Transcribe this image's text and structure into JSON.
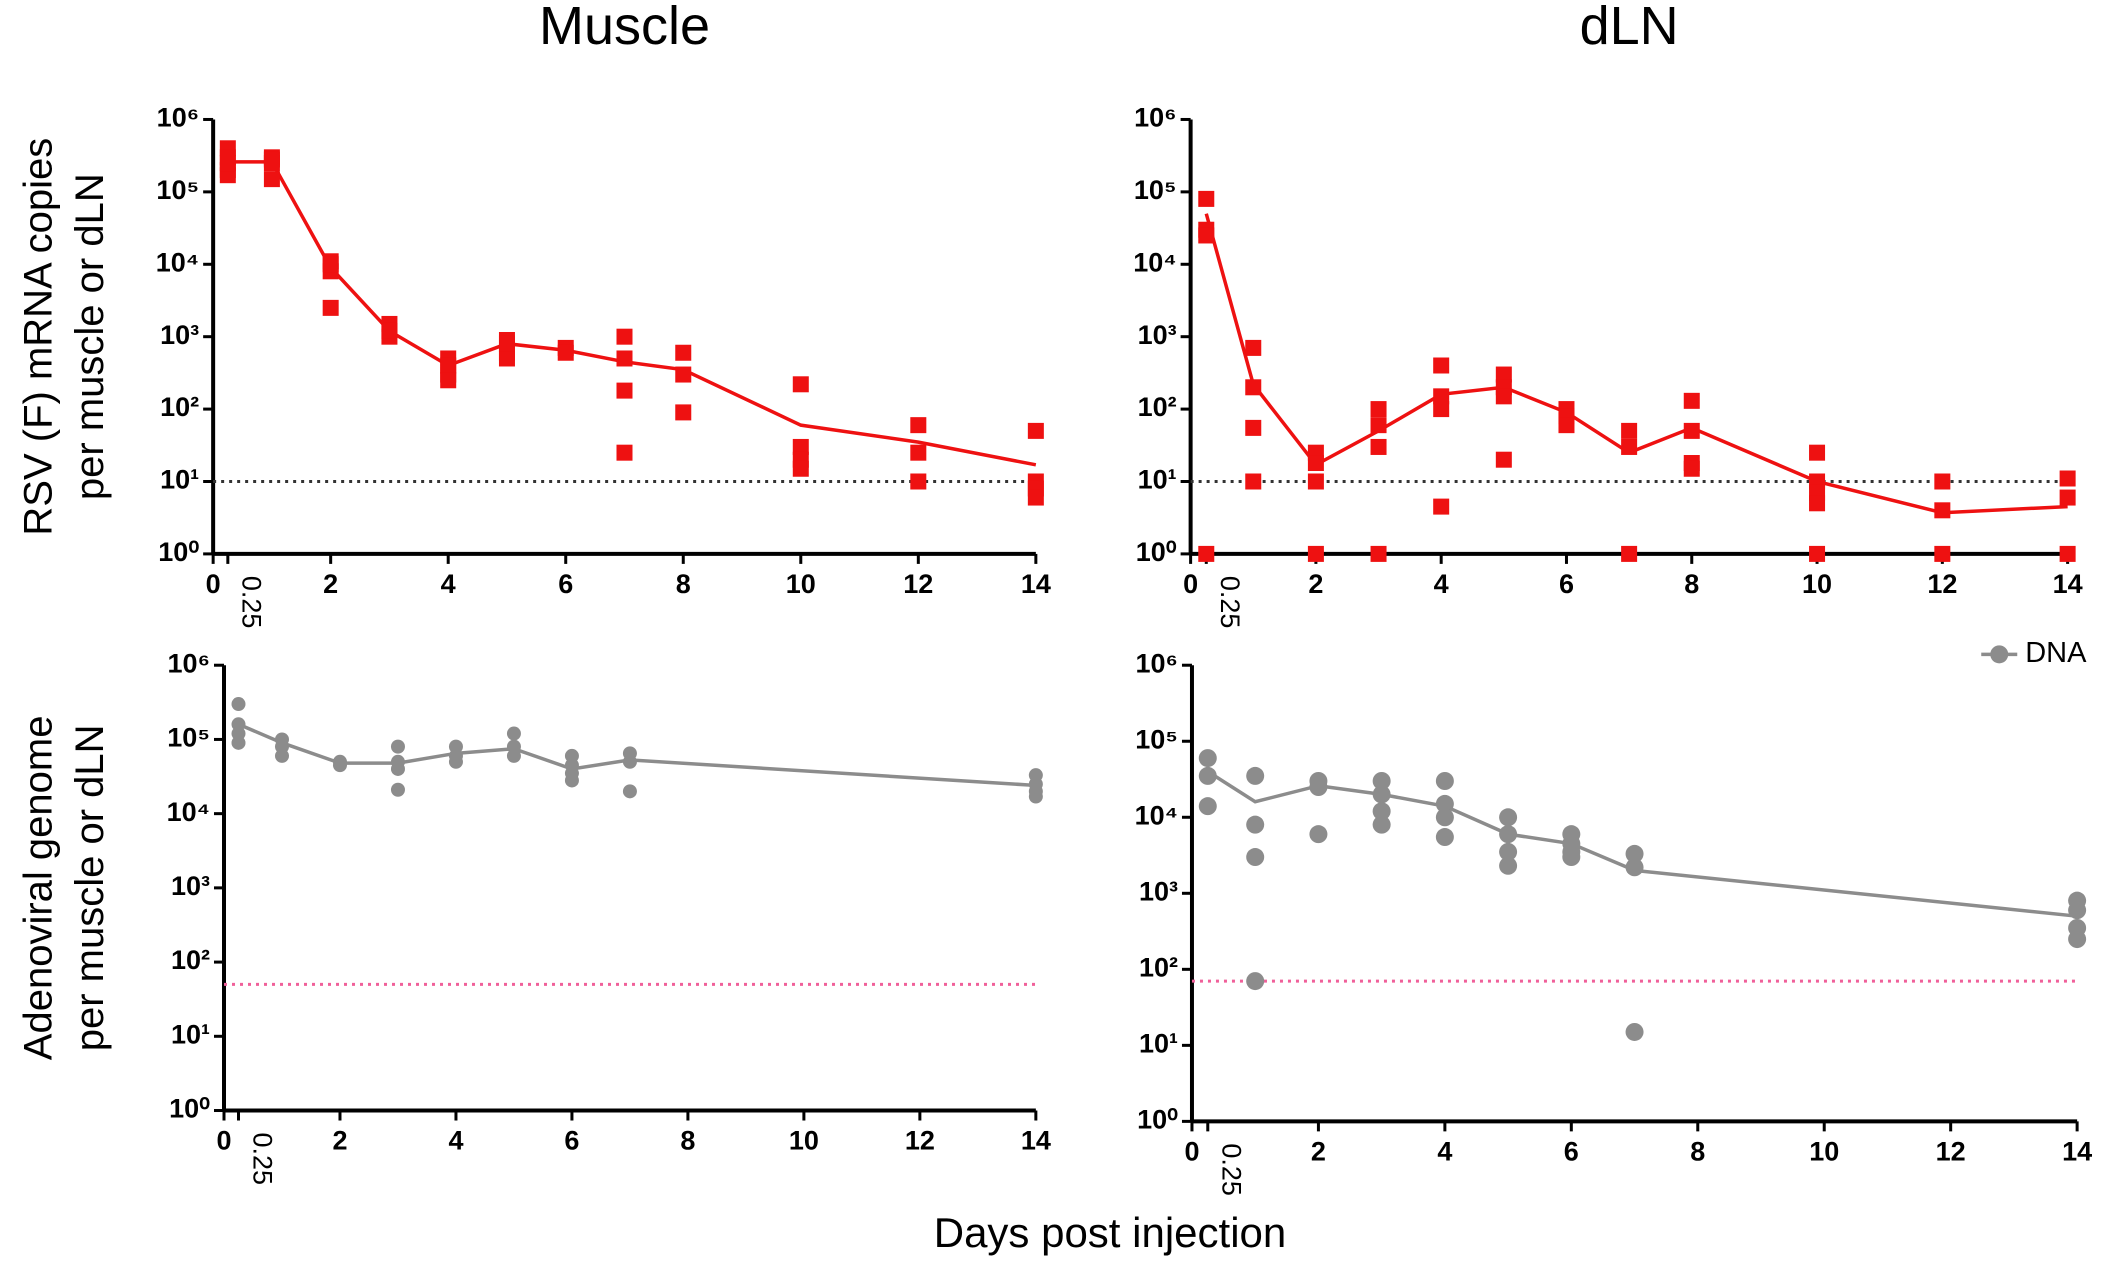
{
  "xlabel": "Days post injection",
  "chart_data": [
    {
      "type": "scatter",
      "title": "Muscle",
      "ylabel": [
        "RSV (F) mRNA copies",
        "per muscle or dLN"
      ],
      "xlim": [
        0,
        14
      ],
      "ylim": [
        1,
        1000000
      ],
      "log_y": true,
      "xticks": [
        0,
        0.25,
        2,
        4,
        6,
        8,
        10,
        12,
        14
      ],
      "yticks": [
        {
          "value": 1,
          "label": "10⁰"
        },
        {
          "value": 10,
          "label": "10¹"
        },
        {
          "value": 100,
          "label": "10²"
        },
        {
          "value": 1000,
          "label": "10³"
        },
        {
          "value": 10000,
          "label": "10⁴"
        },
        {
          "value": 100000,
          "label": "10⁵"
        },
        {
          "value": 1000000,
          "label": "10⁶"
        }
      ],
      "reference_line": {
        "value": 10,
        "color": "#333333"
      },
      "series": [
        {
          "color": "#ee1111",
          "marker": "square",
          "x": [
            0.25,
            0.25,
            0.25,
            0.25,
            0.25,
            1,
            1,
            1,
            1,
            2,
            2,
            2,
            2,
            3,
            3,
            3,
            4,
            4,
            4,
            4,
            5,
            5,
            5,
            5,
            6,
            6,
            7,
            7,
            7,
            7,
            8,
            8,
            8,
            10,
            10,
            10,
            10,
            12,
            12,
            12,
            14,
            14,
            14,
            14
          ],
          "y": [
            400000,
            300000,
            200000,
            170000,
            250000,
            300000,
            250000,
            150000,
            280000,
            11000,
            8000,
            2500,
            10000,
            1500,
            1000,
            1200,
            500,
            300,
            400,
            250,
            900,
            600,
            500,
            800,
            700,
            600,
            1000,
            500,
            180,
            25,
            600,
            300,
            90,
            220,
            30,
            20,
            15,
            60,
            25,
            10,
            50,
            10,
            8,
            6
          ],
          "line_x": [
            0.25,
            1,
            2,
            3,
            4,
            5,
            6,
            7,
            8,
            10,
            12,
            14
          ],
          "line_y": [
            260000,
            260000,
            9000,
            1200,
            400,
            800,
            650,
            450,
            350,
            60,
            35,
            17
          ]
        }
      ]
    },
    {
      "type": "scatter",
      "title": "dLN",
      "xlim": [
        0,
        14
      ],
      "ylim": [
        1,
        1000000
      ],
      "log_y": true,
      "xticks": [
        0,
        0.25,
        2,
        4,
        6,
        8,
        10,
        12,
        14
      ],
      "yticks": [
        {
          "value": 1,
          "label": "10⁰"
        },
        {
          "value": 10,
          "label": "10¹"
        },
        {
          "value": 100,
          "label": "10²"
        },
        {
          "value": 1000,
          "label": "10³"
        },
        {
          "value": 10000,
          "label": "10⁴"
        },
        {
          "value": 100000,
          "label": "10⁵"
        },
        {
          "value": 1000000,
          "label": "10⁶"
        }
      ],
      "reference_line": {
        "value": 10,
        "color": "#333333"
      },
      "series": [
        {
          "color": "#ee1111",
          "marker": "square",
          "x": [
            0.25,
            0.25,
            0.25,
            0.25,
            1,
            1,
            1,
            1,
            2,
            2,
            2,
            2,
            3,
            3,
            3,
            3,
            4,
            4,
            4,
            4,
            5,
            5,
            5,
            5,
            6,
            6,
            6,
            7,
            7,
            7,
            8,
            8,
            8,
            8,
            10,
            10,
            10,
            10,
            10,
            12,
            12,
            12,
            14,
            14,
            14
          ],
          "y": [
            80000,
            30000,
            25000,
            1,
            700,
            200,
            55,
            10,
            25,
            18,
            10,
            1,
            100,
            60,
            30,
            1,
            400,
            150,
            100,
            4.5,
            300,
            200,
            150,
            20,
            100,
            80,
            60,
            50,
            30,
            1,
            130,
            50,
            18,
            15,
            25,
            10,
            7,
            5,
            1,
            10,
            4,
            1,
            11,
            6,
            1
          ],
          "line_x": [
            0.25,
            1,
            2,
            3,
            4,
            5,
            6,
            7,
            8,
            10,
            12,
            14
          ],
          "line_y": [
            50000,
            220,
            17,
            50,
            160,
            200,
            90,
            25,
            55,
            10,
            3.7,
            4.5
          ]
        }
      ]
    },
    {
      "type": "scatter",
      "ylabel": [
        "Adenoviral genome",
        "per muscle or dLN"
      ],
      "xlim": [
        0,
        14
      ],
      "ylim": [
        1,
        1000000
      ],
      "log_y": true,
      "xticks": [
        0,
        0.25,
        2,
        4,
        6,
        8,
        10,
        12,
        14
      ],
      "yticks": [
        {
          "value": 1,
          "label": "10⁰"
        },
        {
          "value": 10,
          "label": "10¹"
        },
        {
          "value": 100,
          "label": "10²"
        },
        {
          "value": 1000,
          "label": "10³"
        },
        {
          "value": 10000,
          "label": "10⁴"
        },
        {
          "value": 100000,
          "label": "10⁵"
        },
        {
          "value": 1000000,
          "label": "10⁶"
        }
      ],
      "reference_line": {
        "value": 50,
        "color": "#f0609a"
      },
      "series": [
        {
          "color": "#8c8c8c",
          "marker": "circle",
          "x": [
            0.25,
            0.25,
            0.25,
            0.25,
            1,
            1,
            1,
            2,
            2,
            3,
            3,
            3,
            3,
            4,
            4,
            4,
            5,
            5,
            5,
            6,
            6,
            6,
            6,
            7,
            7,
            7,
            14,
            14,
            14,
            14
          ],
          "y": [
            300000,
            160000,
            120000,
            90000,
            100000,
            80000,
            60000,
            50000,
            45000,
            80000,
            50000,
            40000,
            21000,
            80000,
            60000,
            50000,
            120000,
            80000,
            60000,
            60000,
            45000,
            35000,
            28000,
            65000,
            50000,
            20000,
            33000,
            25000,
            20000,
            17000
          ],
          "line_x": [
            0.25,
            1,
            2,
            3,
            4,
            5,
            6,
            7,
            14
          ],
          "line_y": [
            160000,
            90000,
            48000,
            48000,
            65000,
            75000,
            40000,
            53000,
            24000
          ]
        }
      ]
    },
    {
      "type": "scatter",
      "xlim": [
        0,
        14
      ],
      "ylim": [
        1,
        1000000
      ],
      "log_y": true,
      "xticks": [
        0,
        0.25,
        2,
        4,
        6,
        8,
        10,
        12,
        14
      ],
      "yticks": [
        {
          "value": 1,
          "label": "10⁰"
        },
        {
          "value": 10,
          "label": "10¹"
        },
        {
          "value": 100,
          "label": "10²"
        },
        {
          "value": 1000,
          "label": "10³"
        },
        {
          "value": 10000,
          "label": "10⁴"
        },
        {
          "value": 100000,
          "label": "10⁵"
        },
        {
          "value": 1000000,
          "label": "10⁶"
        }
      ],
      "reference_line": {
        "value": 70,
        "color": "#f0609a"
      },
      "legend": "upper right",
      "series": [
        {
          "name": "DNA",
          "color": "#8c8c8c",
          "marker": "circle",
          "x": [
            0.25,
            0.25,
            0.25,
            1,
            1,
            1,
            1,
            2,
            2,
            2,
            3,
            3,
            3,
            3,
            4,
            4,
            4,
            4,
            5,
            5,
            5,
            5,
            6,
            6,
            6,
            6,
            7,
            7,
            7,
            14,
            14,
            14,
            14
          ],
          "y": [
            60000,
            35000,
            14000,
            35000,
            8000,
            3000,
            70,
            30000,
            25000,
            6000,
            30000,
            20000,
            12000,
            8000,
            30000,
            15000,
            10000,
            5500,
            10000,
            6000,
            3500,
            2300,
            6000,
            4500,
            3500,
            3000,
            3300,
            2200,
            15,
            800,
            600,
            350,
            250
          ],
          "line_x": [
            0.25,
            1,
            2,
            3,
            4,
            5,
            6,
            7,
            14
          ],
          "line_y": [
            40000,
            16000,
            26000,
            20000,
            14000,
            6000,
            4500,
            2000,
            500
          ]
        }
      ]
    }
  ]
}
